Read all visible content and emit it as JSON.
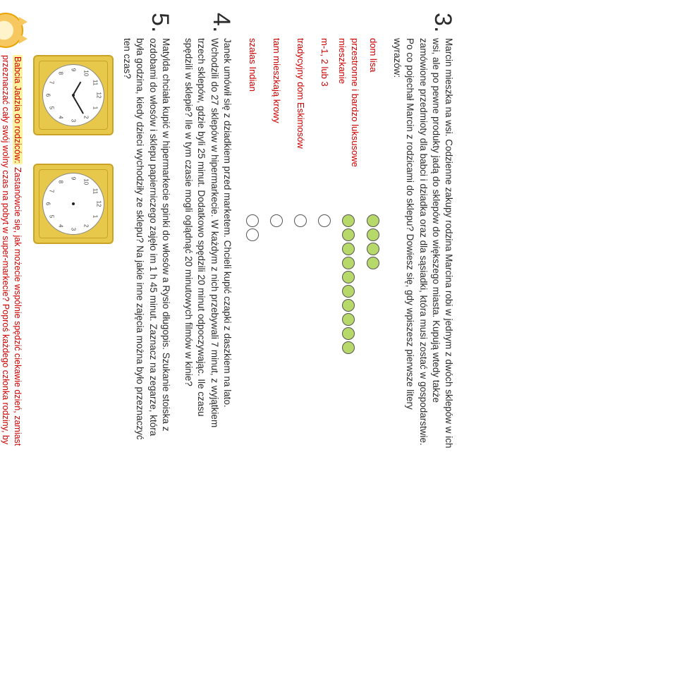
{
  "colors": {
    "accent": "#cc0000",
    "bar_fill": "#b6d96a",
    "bar_stroke": "#555",
    "clock_frame": "#e8c84a",
    "clock_border": "#c9a227",
    "highlight": "#fff3a0"
  },
  "task3": {
    "number": "3.",
    "intro": "Marcin mieszka na wsi. Codzienne zakupy rodzina Marcina robi w jednym z dwóch sklepów w ich wsi, ale po pewne produkty jadą do sklepów do większego miasta. Kupują wtedy także zamówione przedmioty dla babci i dziadka oraz dla sąsiadki, która musi zostać w gospodarstwie. Po co pojechał Marcin z rodzicami do sklepu? Dowiesz się, gdy wpiszesz pierwsze litery wyrazów:",
    "defs": [
      {
        "label": "dom lisa",
        "cells": 4,
        "filled": 4
      },
      {
        "label": "przestronne i bardzo luksusowe mieszkanie",
        "cells": 10,
        "filled": 10
      },
      {
        "label": "m-1, 2 lub 3",
        "cells": 1,
        "filled": 0
      },
      {
        "label": "tradycyjny dom Eskimosów",
        "cells": 1,
        "filled": 0
      },
      {
        "label": "tam mieszkają krowy",
        "cells": 1,
        "filled": 0
      },
      {
        "label": "szałas Indian",
        "cells": 2,
        "filled": 0
      }
    ]
  },
  "task4": {
    "number": "4.",
    "text": "Janek umówił się z dziadkiem przed marketem. Chcieli kupić czapki z daszkiem na lato. Wchodzili do 27 sklepów w hipermarkecie. W każdym z nich przebywali 7 minut, z wyjątkiem trzech sklepów, gdzie byli 25 minut. Dodatkowo spędzili 20 minut odpoczywając. Ile czasu spędzili w sklepie? Ile w tym czasie mogli oglądnąć 20 minutowych filmów w kinie?"
  },
  "task5": {
    "number": "5.",
    "text": "Matylda chciała kupić w hipermarkecie spinki do włosów a Rysio długopis. Szukanie stoiska z ozdobami do włosów i sklepu papierniczego zajęło im 1 h 45 minut. Zaznacz na zegarze,  która była godzina, kiedy dzieci wychodziły ze sklepu? Na jakie inne zajęcia można było przeznaczyć ten czas?",
    "clocks": [
      {
        "numbers": [
          "12",
          "1",
          "2",
          "3",
          "4",
          "5",
          "6",
          "7",
          "8",
          "9",
          "10",
          "11"
        ],
        "hour_angle": 300,
        "minute_angle": 60,
        "show_hands": true
      },
      {
        "numbers": [
          "12",
          "1",
          "2",
          "3",
          "4",
          "5",
          "6",
          "7",
          "8",
          "9",
          "10",
          "11"
        ],
        "show_hands": false
      }
    ]
  },
  "footer": {
    "lead": "Babcia Jadzia do rodziców:",
    "text": " Zastanówcie się, jak możecie wspólnie spędzić ciekawie dzień, zamiast przeznaczać cały swój wolny czas na pobyt w super-markecie? Poproś każdego członka rodziny, by wypisał swoje propozycje, jak można spędzić ciekawie te kilka godzin razem."
  }
}
